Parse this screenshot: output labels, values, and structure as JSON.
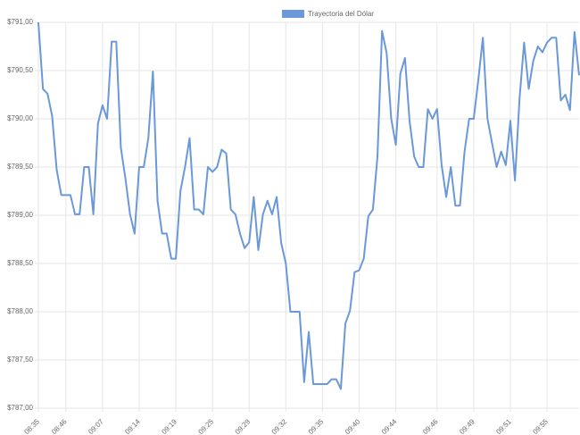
{
  "chart_data": {
    "type": "line",
    "series": [
      {
        "name": "Trayectoria del Dólar",
        "color": "#6a98d8",
        "values": [
          791.0,
          790.31,
          790.26,
          790.03,
          789.47,
          789.21,
          789.21,
          789.21,
          789.01,
          789.01,
          789.5,
          789.5,
          789.01,
          789.95,
          790.14,
          790.0,
          790.8,
          790.8,
          789.7,
          789.38,
          789.01,
          788.81,
          789.5,
          789.5,
          789.8,
          790.49,
          789.15,
          788.81,
          788.81,
          788.55,
          788.55,
          789.25,
          789.5,
          789.8,
          789.06,
          789.06,
          789.01,
          789.5,
          789.45,
          789.5,
          789.68,
          789.64,
          789.06,
          789.01,
          788.81,
          788.66,
          788.72,
          789.19,
          788.64,
          789.01,
          789.15,
          789.01,
          789.19,
          788.71,
          788.5,
          788.0,
          788.0,
          788.0,
          787.27,
          787.79,
          787.25,
          787.25,
          787.25,
          787.25,
          787.3,
          787.3,
          787.2,
          787.88,
          788.01,
          788.41,
          788.43,
          788.55,
          788.99,
          789.06,
          789.61,
          790.91,
          790.68,
          790.0,
          789.73,
          790.47,
          790.63,
          789.98,
          789.61,
          789.5,
          789.5,
          790.1,
          790.0,
          790.1,
          789.52,
          789.19,
          789.5,
          789.1,
          789.1,
          789.66,
          790.0,
          790.0,
          790.4,
          790.84,
          790.0,
          789.75,
          789.5,
          789.66,
          789.52,
          789.98,
          789.36,
          790.21,
          790.79,
          790.31,
          790.6,
          790.75,
          790.69,
          790.79,
          790.84,
          790.84,
          790.19,
          790.25,
          790.09,
          790.9,
          790.45
        ]
      }
    ],
    "categories": [
      "08:35",
      null,
      null,
      null,
      null,
      null,
      "08:46",
      null,
      null,
      null,
      null,
      null,
      null,
      null,
      "09:07",
      null,
      null,
      null,
      null,
      null,
      null,
      null,
      "09:14",
      null,
      null,
      null,
      null,
      null,
      null,
      null,
      "09:19",
      null,
      null,
      null,
      null,
      null,
      null,
      null,
      "09:25",
      null,
      null,
      null,
      null,
      null,
      null,
      null,
      "09:29",
      null,
      null,
      null,
      null,
      null,
      null,
      null,
      "09:32",
      null,
      null,
      null,
      null,
      null,
      null,
      null,
      "09:35",
      null,
      null,
      null,
      null,
      null,
      null,
      null,
      "09:40",
      null,
      null,
      null,
      null,
      null,
      null,
      null,
      "09:44",
      null,
      null,
      null,
      null,
      null,
      null,
      null,
      null,
      "09:46",
      null,
      null,
      null,
      null,
      null,
      null,
      null,
      "09:49",
      null,
      null,
      null,
      null,
      null,
      null,
      null,
      "09:51",
      null,
      null,
      null,
      null,
      null,
      null,
      null,
      "09:55",
      null,
      null,
      null,
      null,
      null,
      null,
      null
    ],
    "ylim": [
      787.0,
      791.0
    ],
    "yticks": [
      {
        "value": 787.0,
        "label": "$787,00"
      },
      {
        "value": 787.5,
        "label": "$787,50"
      },
      {
        "value": 788.0,
        "label": "$788,00"
      },
      {
        "value": 788.5,
        "label": "$788,50"
      },
      {
        "value": 789.0,
        "label": "$789,00"
      },
      {
        "value": 789.5,
        "label": "$789,50"
      },
      {
        "value": 790.0,
        "label": "$790,00"
      },
      {
        "value": 790.5,
        "label": "$790,50"
      },
      {
        "value": 791.0,
        "label": "$791,00"
      }
    ],
    "grid": true,
    "legend": "top"
  }
}
